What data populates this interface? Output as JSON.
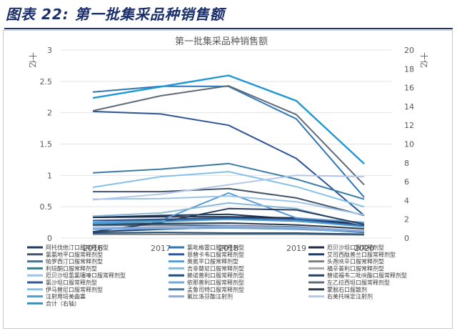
{
  "figure": {
    "title": "图表 22:  第一批集采品种销售额"
  },
  "chart_data": {
    "type": "line",
    "title": "第一批集采品种销售额",
    "ylabel": "十亿",
    "y2label": "十亿",
    "x": [
      "2016",
      "2017",
      "2018",
      "2019",
      "2020"
    ],
    "ylim": [
      0,
      3
    ],
    "y2lim": [
      0,
      20
    ],
    "yticks": [
      "0",
      "0.5",
      "1",
      "1.5",
      "2",
      "2.5",
      "3"
    ],
    "y2ticks": [
      "0",
      "2",
      "4",
      "6",
      "8",
      "10",
      "12",
      "14",
      "16",
      "18",
      "20"
    ],
    "grid": true,
    "legend_position": "bottom",
    "series": [
      {
        "name": "阿托伐他汀口服常释剂型",
        "color": "#1f3b5c",
        "values": [
          0.33,
          0.36,
          0.38,
          0.3,
          0.2
        ]
      },
      {
        "name": "氯吡格雷口服常释剂型",
        "color": "#2e75b6",
        "values": [
          2.33,
          2.42,
          2.42,
          1.9,
          0.65
        ]
      },
      {
        "name": "厄贝沙坦口服常释剂型",
        "color": "#1f2a44",
        "values": [
          0.33,
          0.34,
          0.34,
          0.32,
          0.22
        ]
      },
      {
        "name": "氯氨地平口服常释剂型",
        "color": "#44546a",
        "values": [
          0.74,
          0.74,
          0.79,
          0.64,
          0.36
        ]
      },
      {
        "name": "恩替卡韦口服常释剂型",
        "color": "#2f5597",
        "values": [
          2.02,
          1.98,
          1.8,
          1.27,
          0.36
        ]
      },
      {
        "name": "艾司西酞普兰口服常释剂型",
        "color": "#203864",
        "values": [
          0.1,
          0.14,
          0.17,
          0.15,
          0.09
        ]
      },
      {
        "name": "帕罗西汀口服常释剂型",
        "color": "#4d6f8c",
        "values": [
          0.2,
          0.21,
          0.2,
          0.18,
          0.11
        ]
      },
      {
        "name": "奥氮平口服常释剂型",
        "color": "#5b9bd5",
        "values": [
          0.25,
          0.28,
          0.72,
          0.32,
          0.25
        ]
      },
      {
        "name": "头孢呋辛口服常释剂型",
        "color": "#7f7f7f",
        "values": [
          0.06,
          0.06,
          0.06,
          0.06,
          0.05
        ]
      },
      {
        "name": "利培酮口服常释剂型",
        "color": "#3c7d8c",
        "values": [
          0.28,
          0.29,
          0.3,
          0.27,
          0.19
        ]
      },
      {
        "name": "吉非替尼口服常释剂型",
        "color": "#8ab8d8",
        "values": [
          0.35,
          0.4,
          0.56,
          0.47,
          0.2
        ]
      },
      {
        "name": "福辛普利口服常释剂型",
        "color": "#a6a6a6",
        "values": [
          0.16,
          0.18,
          0.18,
          0.16,
          0.1
        ]
      },
      {
        "name": "厄贝沙坦氢氯噻嗪口服常释剂型",
        "color": "#9dc3e6",
        "values": [
          0.62,
          0.63,
          0.67,
          0.58,
          0.37
        ]
      },
      {
        "name": "赖诺普利口服常释剂型",
        "color": "#1f4e79",
        "values": [
          0.08,
          0.09,
          0.08,
          0.08,
          0.06
        ]
      },
      {
        "name": "替诺福韦二吡呋酯口服常释剂型",
        "color": "#2a3f5f",
        "values": [
          0.1,
          0.25,
          0.47,
          0.45,
          0.22
        ]
      },
      {
        "name": "氯沙坦口服常释剂型",
        "color": "#305496",
        "values": [
          0.28,
          0.3,
          0.32,
          0.3,
          0.2
        ]
      },
      {
        "name": "依那普利口服常释剂型",
        "color": "#6fa8dc",
        "values": [
          0.14,
          0.15,
          0.16,
          0.14,
          0.1
        ]
      },
      {
        "name": "左乙拉西坦口服常释剂型",
        "color": "#5f6b7a",
        "values": [
          2.03,
          2.27,
          2.43,
          1.97,
          0.85
        ]
      },
      {
        "name": "伊马替尼口服常释剂型",
        "color": "#85c1e9",
        "values": [
          0.81,
          0.98,
          1.06,
          0.82,
          0.5
        ]
      },
      {
        "name": "孟鲁司特口服常释剂型",
        "color": "#3a7ca5",
        "values": [
          1.04,
          1.1,
          1.19,
          0.94,
          0.62
        ]
      },
      {
        "name": "蒙脱石口服散剂",
        "color": "#2b3a4a",
        "values": [
          0.22,
          0.23,
          0.24,
          0.21,
          0.15
        ]
      },
      {
        "name": "注射用培美曲塞",
        "color": "#4a9fd5",
        "values": [
          0.23,
          0.26,
          0.3,
          0.28,
          0.18
        ]
      },
      {
        "name": "氟比洛芬酯注射剂",
        "color": "#8faadc",
        "values": [
          0.16,
          0.17,
          0.19,
          0.17,
          0.12
        ]
      },
      {
        "name": "右美托咪定注射剂",
        "color": "#b4c7e7",
        "values": [
          0.61,
          0.7,
          0.85,
          1.0,
          0.98
        ]
      },
      {
        "name": "合计（右轴）",
        "color": "#1f97d4",
        "axis": "right",
        "values": [
          14.9,
          16.1,
          17.3,
          14.6,
          7.9
        ]
      }
    ]
  }
}
